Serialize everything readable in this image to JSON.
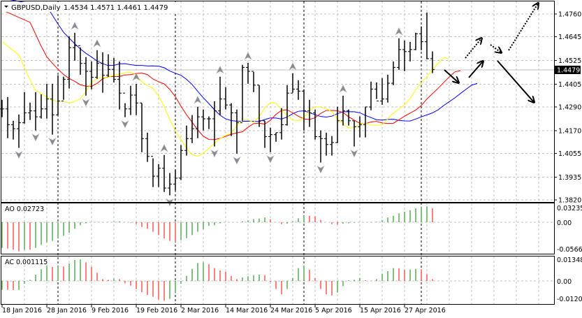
{
  "header": {
    "symbol": "GBPUSD,Daily",
    "ohlc": "1.4534 1.4571 1.4461 1.4479"
  },
  "current_price": "1.4479",
  "colors": {
    "lips": "#ffff00",
    "teeth": "#ff0000",
    "jaw": "#0000ff",
    "up": "#008000",
    "down": "#ff0000",
    "bars": "#000000",
    "grid": "#c0c0c0"
  },
  "chart_data": [
    {
      "type": "ohlc",
      "title": "GBPUSD,Daily",
      "ylim": [
        1.382,
        1.476
      ],
      "y_ticks": [
        "1.4760",
        "1.4645",
        "1.4525",
        "1.4405",
        "1.4290",
        "1.4170",
        "1.4055",
        "1.3935",
        "1.3820"
      ],
      "x_labels": [
        {
          "bar": 0,
          "label": "18 Jan 2016"
        },
        {
          "bar": 8,
          "label": "28 Jan 2016"
        },
        {
          "bar": 16,
          "label": "9 Feb 2016"
        },
        {
          "bar": 24,
          "label": "19 Feb 2016"
        },
        {
          "bar": 32,
          "label": "2 Mar 2016"
        },
        {
          "bar": 40,
          "label": "14 Mar 2016"
        },
        {
          "bar": 48,
          "label": "24 Mar 2016"
        },
        {
          "bar": 56,
          "label": "5 Apr 2016"
        },
        {
          "bar": 64,
          "label": "15 Apr 2016"
        },
        {
          "bar": 72,
          "label": "27 Apr 2016"
        }
      ],
      "period_separators": [
        10,
        31,
        54,
        75
      ],
      "high": [
        1.4326,
        1.434,
        1.422,
        1.4252,
        1.4365,
        1.4312,
        1.4365,
        1.4354,
        1.4407,
        1.4407,
        1.445,
        1.4443,
        1.4647,
        1.4665,
        1.4591,
        1.4542,
        1.452,
        1.4577,
        1.4566,
        1.4556,
        1.4538,
        1.452,
        1.4309,
        1.4397,
        1.4407,
        1.4309,
        1.416,
        1.403,
        1.4001,
        1.4047,
        1.3956,
        1.3973,
        1.4097,
        1.4196,
        1.4249,
        1.4291,
        1.4277,
        1.4242,
        1.4319,
        1.4443,
        1.439,
        1.4309,
        1.4277,
        1.4503,
        1.4513,
        1.4467,
        1.44,
        1.422,
        1.4185,
        1.416,
        1.4284,
        1.44,
        1.446,
        1.4425,
        1.4379,
        1.4326,
        1.4277,
        1.4171,
        1.416,
        1.4143,
        1.4291,
        1.4347,
        1.4277,
        1.422,
        1.4242,
        1.4291,
        1.4418,
        1.4414,
        1.4436,
        1.4453,
        1.452,
        1.4637,
        1.4626,
        1.4619,
        1.4665,
        1.4697,
        1.4767,
        1.4571
      ],
      "low": [
        1.4238,
        1.4132,
        1.4125,
        1.4083,
        1.4206,
        1.4224,
        1.4171,
        1.4231,
        1.4231,
        1.415,
        1.4249,
        1.4326,
        1.4383,
        1.4524,
        1.4453,
        1.4347,
        1.4379,
        1.4432,
        1.4362,
        1.4443,
        1.4414,
        1.4277,
        1.4238,
        1.4249,
        1.4249,
        1.4061,
        1.4012,
        1.3885,
        1.3885,
        1.386,
        1.3843,
        1.3867,
        1.392,
        1.4044,
        1.4107,
        1.4132,
        1.4171,
        1.4178,
        1.409,
        1.4249,
        1.4277,
        1.4143,
        1.4054,
        1.422,
        1.4407,
        1.4365,
        1.4189,
        1.4083,
        1.4061,
        1.4114,
        1.4125,
        1.4196,
        1.4362,
        1.4326,
        1.4171,
        1.4189,
        1.4125,
        1.4009,
        1.4044,
        1.4044,
        1.4107,
        1.4196,
        1.4196,
        1.409,
        1.4136,
        1.4136,
        1.4273,
        1.433,
        1.4301,
        1.4312,
        1.44,
        1.4478,
        1.4471,
        1.452,
        1.4577,
        1.4577,
        1.4531,
        1.4461
      ],
      "close": [
        1.428,
        1.42,
        1.418,
        1.421,
        1.426,
        1.427,
        1.424,
        1.428,
        1.433,
        1.425,
        1.432,
        1.443,
        1.459,
        1.46,
        1.451,
        1.447,
        1.444,
        1.451,
        1.445,
        1.448,
        1.443,
        1.436,
        1.428,
        1.435,
        1.431,
        1.413,
        1.404,
        1.394,
        1.398,
        1.388,
        1.39,
        1.393,
        1.407,
        1.413,
        1.418,
        1.424,
        1.423,
        1.423,
        1.427,
        1.433,
        1.43,
        1.426,
        1.421,
        1.449,
        1.447,
        1.44,
        1.422,
        1.414,
        1.415,
        1.416,
        1.42,
        1.436,
        1.438,
        1.437,
        1.427,
        1.426,
        1.414,
        1.413,
        1.41,
        1.411,
        1.422,
        1.427,
        1.422,
        1.419,
        1.42,
        1.429,
        1.438,
        1.432,
        1.433,
        1.441,
        1.449,
        1.458,
        1.457,
        1.458,
        1.466,
        1.462,
        1.4534,
        1.4479
      ],
      "alligator": {
        "jaw": {
          "period": 13,
          "shift": 8,
          "seed": 1.484
        },
        "teeth": {
          "period": 8,
          "shift": 5,
          "seed": 1.478
        },
        "lips": {
          "period": 5,
          "shift": 3,
          "seed": 1.462
        }
      },
      "fractals": [
        {
          "bar": 13,
          "dir": "up"
        },
        {
          "bar": 17,
          "dir": "up"
        },
        {
          "bar": 24,
          "dir": "up"
        },
        {
          "bar": 29,
          "dir": "up"
        },
        {
          "bar": 35,
          "dir": "up"
        },
        {
          "bar": 39,
          "dir": "up"
        },
        {
          "bar": 44,
          "dir": "up"
        },
        {
          "bar": 52,
          "dir": "up"
        },
        {
          "bar": 61,
          "dir": "up"
        },
        {
          "bar": 71,
          "dir": "up"
        },
        {
          "bar": 3,
          "dir": "down"
        },
        {
          "bar": 6,
          "dir": "down"
        },
        {
          "bar": 9,
          "dir": "down"
        },
        {
          "bar": 15,
          "dir": "down"
        },
        {
          "bar": 22,
          "dir": "down"
        },
        {
          "bar": 30,
          "dir": "down"
        },
        {
          "bar": 38,
          "dir": "down"
        },
        {
          "bar": 42,
          "dir": "down"
        },
        {
          "bar": 48,
          "dir": "down"
        },
        {
          "bar": 57,
          "dir": "down"
        },
        {
          "bar": 63,
          "dir": "down"
        }
      ]
    },
    {
      "type": "bar",
      "title": "AO 0.02723",
      "y_ticks": [
        "0.03235",
        "0.00",
        "-0.05662"
      ],
      "ylim": [
        -0.05662,
        0.03235
      ],
      "values": [
        -0.0498,
        -0.0512,
        -0.0535,
        -0.0566,
        -0.0535,
        -0.0535,
        -0.0498,
        -0.0439,
        -0.039,
        -0.0362,
        -0.0317,
        -0.0263,
        -0.0204,
        -0.0127,
        -0.0059,
        -0.0018,
        0.0002,
        0.0005,
        0.0003,
        0.0005,
        0.0009,
        0.0014,
        0.0001,
        -0.0009,
        -0.0036,
        -0.0091,
        -0.0127,
        -0.0186,
        -0.0249,
        -0.0317,
        -0.0362,
        -0.0385,
        -0.0349,
        -0.0308,
        -0.0249,
        -0.0186,
        -0.0136,
        -0.0072,
        -0.0059,
        -0.0018,
        0.0,
        0.0,
        0.0,
        0.0018,
        0.0036,
        0.0063,
        0.0072,
        0.0091,
        0.0054,
        0.0002,
        -0.0036,
        -0.0027,
        0.0014,
        0.0077,
        0.0127,
        0.0127,
        0.0118,
        0.0045,
        0.0,
        -0.0036,
        -0.0045,
        -0.0027,
        -0.0018,
        -0.0009,
        0.0,
        0.0001,
        0.0005,
        0.0009,
        0.0045,
        0.0091,
        0.0127,
        0.0172,
        0.0204,
        0.0236,
        0.0272,
        0.0304,
        0.0308,
        0.02723
      ]
    },
    {
      "type": "bar",
      "title": "AC 0.001115",
      "y_ticks": [
        "0.013485",
        "0.00",
        "-0.01208"
      ],
      "ylim": [
        -0.01208,
        0.013485
      ],
      "values": [
        -0.0053,
        -0.0053,
        -0.0054,
        -0.0053,
        -0.0017,
        0.0007,
        0.0038,
        0.007,
        0.0091,
        0.0084,
        0.0088,
        0.0087,
        0.0105,
        0.0126,
        0.0129,
        0.0112,
        0.0084,
        0.0049,
        0.0011,
        0.0007,
        0.0014,
        0.0011,
        -0.0014,
        -0.0028,
        -0.0049,
        -0.0067,
        -0.0084,
        -0.0095,
        -0.0112,
        -0.0119,
        -0.0108,
        -0.0073,
        -0.0017,
        0.0031,
        0.0073,
        0.0108,
        0.0112,
        0.0101,
        0.0077,
        0.0063,
        0.0056,
        0.0031,
        0.0011,
        0.0021,
        0.0028,
        0.0035,
        0.0039,
        0.0035,
        -0.0007,
        -0.0049,
        -0.0081,
        -0.0049,
        0.0017,
        0.0077,
        0.0091,
        0.0067,
        0.0017,
        -0.0049,
        -0.0081,
        -0.0087,
        -0.007,
        -0.0031,
        0.0004,
        0.0007,
        0.0017,
        0.0004,
        0.0001,
        0.0011,
        0.0042,
        0.0059,
        0.0077,
        0.0076,
        0.0067,
        0.0068,
        0.0073,
        0.007,
        0.0039,
        0.001115
      ]
    }
  ]
}
